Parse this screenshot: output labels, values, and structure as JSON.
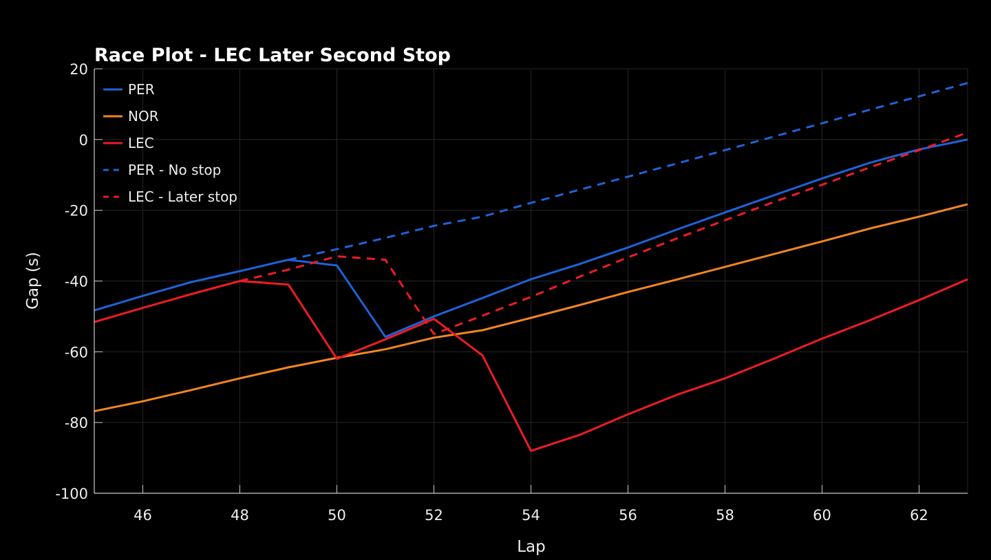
{
  "chart_data": {
    "type": "line",
    "title": "Race Plot - LEC Later Second Stop",
    "xlabel": "Lap",
    "ylabel": "Gap (s)",
    "xlim": [
      45,
      63
    ],
    "ylim": [
      -100,
      20
    ],
    "xticks": [
      46,
      48,
      50,
      52,
      54,
      56,
      58,
      60,
      62
    ],
    "yticks": [
      20,
      0,
      -20,
      -40,
      -60,
      -80,
      -100
    ],
    "grid": true,
    "legend_position": "top-left",
    "series": [
      {
        "name": "PER",
        "color": "#1f63d8",
        "dash": false,
        "x": [
          45,
          46,
          47,
          48,
          49,
          50,
          51,
          52,
          53,
          54,
          55,
          56,
          57,
          58,
          59,
          60,
          61,
          62,
          63
        ],
        "y": [
          -48.3,
          -44.2,
          -40.3,
          -37.2,
          -34,
          -35.6,
          -55.8,
          -50,
          -44.8,
          -39.5,
          -35.2,
          -30.5,
          -25.5,
          -20.6,
          -15.8,
          -11,
          -6.5,
          -2.8,
          0
        ]
      },
      {
        "name": "NOR",
        "color": "#f5861f",
        "dash": false,
        "x": [
          45,
          46,
          47,
          48,
          49,
          50,
          51,
          52,
          53,
          54,
          55,
          56,
          57,
          58,
          59,
          60,
          61,
          62,
          63
        ],
        "y": [
          -76.8,
          -74,
          -70.8,
          -67.5,
          -64.4,
          -61.7,
          -59.3,
          -56,
          -53.9,
          -50.4,
          -46.8,
          -43.1,
          -39.6,
          -36,
          -32.4,
          -28.8,
          -25.1,
          -21.8,
          -18.3
        ]
      },
      {
        "name": "LEC",
        "color": "#ee1c25",
        "dash": false,
        "x": [
          45,
          46,
          47,
          48,
          49,
          50,
          51,
          52,
          53,
          54,
          55,
          56,
          57,
          58,
          59,
          60,
          61,
          62,
          63
        ],
        "y": [
          -51.6,
          -47.6,
          -43.7,
          -40,
          -41,
          -62,
          -56.5,
          -50.7,
          -61,
          -88,
          -83.5,
          -77.7,
          -72.2,
          -67.5,
          -62,
          -56.3,
          -51,
          -45.4,
          -39.5
        ]
      },
      {
        "name": "PER - No stop",
        "color": "#1f63d8",
        "dash": true,
        "x": [
          49,
          50,
          51,
          52,
          53,
          54,
          55,
          56,
          57,
          58,
          59,
          60,
          61,
          62,
          63
        ],
        "y": [
          -34,
          -31,
          -27.8,
          -24.4,
          -21.8,
          -17.9,
          -14.2,
          -10.5,
          -6.8,
          -3,
          0.8,
          4.6,
          8.5,
          12.2,
          16
        ]
      },
      {
        "name": "LEC - Later stop",
        "color": "#ee1c25",
        "dash": true,
        "x": [
          48,
          49,
          50,
          51,
          52,
          53,
          54,
          55,
          56,
          57,
          58,
          59,
          60,
          61,
          62,
          63
        ],
        "y": [
          -40,
          -36.8,
          -33,
          -34,
          -55,
          -49.8,
          -44.5,
          -38.8,
          -33.3,
          -28,
          -22.8,
          -17.7,
          -12.8,
          -7.8,
          -3,
          2
        ]
      }
    ]
  }
}
